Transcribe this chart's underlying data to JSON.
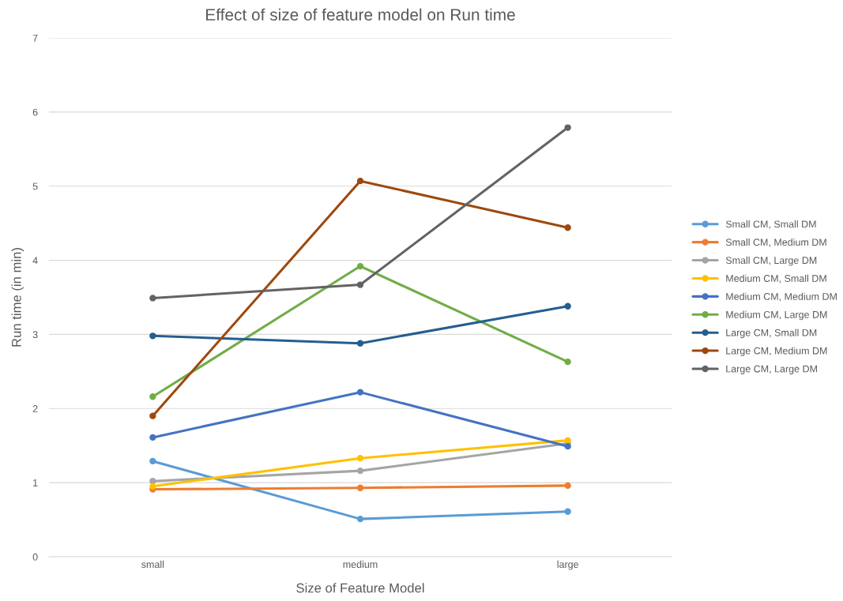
{
  "chart_data": {
    "type": "line",
    "title": "Effect of size of feature model on Run time",
    "xlabel": "Size of Feature Model",
    "ylabel": "Run time (in min)",
    "categories": [
      "small",
      "medium",
      "large"
    ],
    "ylim": [
      0,
      7
    ],
    "yticks": [
      0,
      1,
      2,
      3,
      4,
      5,
      6,
      7
    ],
    "grid": "y",
    "legend": "right",
    "marker": "circle",
    "line_style": "solid",
    "series": [
      {
        "name": "Small CM, Small DM",
        "color": "#5b9bd5",
        "values": [
          1.29,
          0.51,
          0.61
        ]
      },
      {
        "name": "Small CM, Medium DM",
        "color": "#ed7d31",
        "values": [
          0.91,
          0.93,
          0.96
        ]
      },
      {
        "name": "Small CM, Large DM",
        "color": "#a5a5a5",
        "values": [
          1.02,
          1.16,
          1.53
        ]
      },
      {
        "name": "Medium CM, Small DM",
        "color": "#ffc000",
        "values": [
          0.95,
          1.33,
          1.57
        ]
      },
      {
        "name": "Medium CM, Medium DM",
        "color": "#4472c4",
        "values": [
          1.61,
          2.22,
          1.49
        ]
      },
      {
        "name": "Medium CM, Large DM",
        "color": "#70ad47",
        "values": [
          2.16,
          3.92,
          2.63
        ]
      },
      {
        "name": "Large CM, Small DM",
        "color": "#255e91",
        "values": [
          2.98,
          2.88,
          3.38
        ]
      },
      {
        "name": "Large CM, Medium DM",
        "color": "#9e480e",
        "values": [
          1.9,
          5.07,
          4.44
        ]
      },
      {
        "name": "Large CM, Large DM",
        "color": "#636363",
        "values": [
          3.49,
          3.67,
          5.79
        ]
      }
    ]
  }
}
